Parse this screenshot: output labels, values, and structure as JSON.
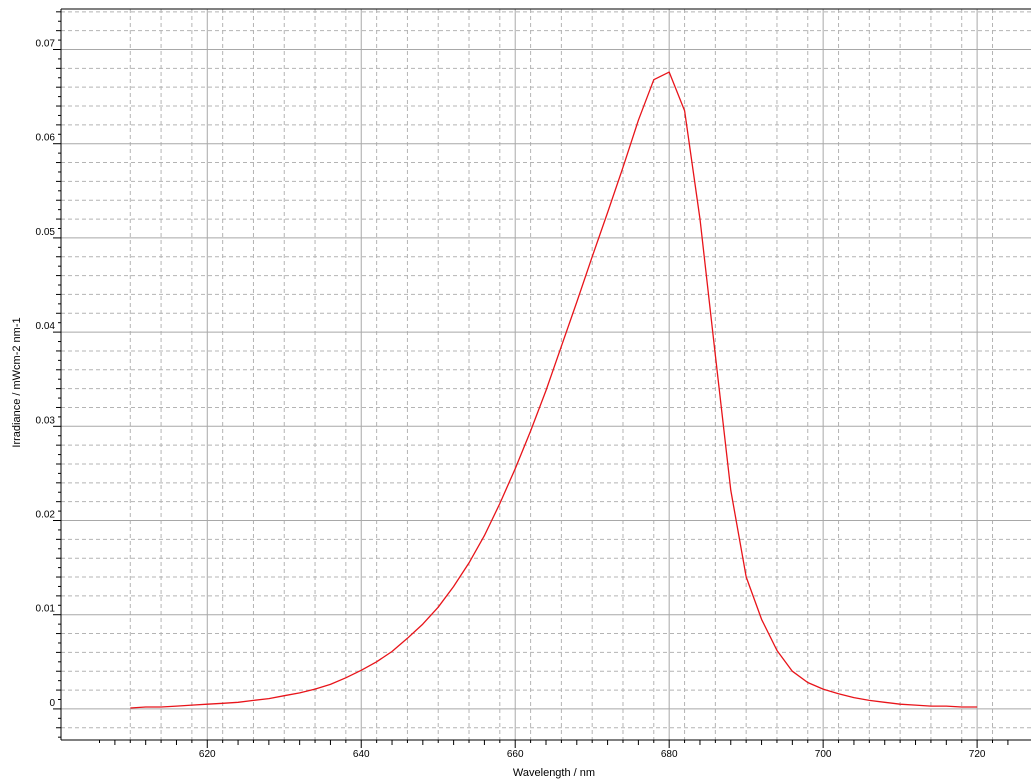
{
  "chart_data": {
    "type": "line",
    "title": "",
    "xlabel": "Wavelength / nm",
    "ylabel": "Irradiance / mWcm-2 nm-1",
    "xlim": [
      601,
      727
    ],
    "ylim": [
      -0.0033,
      0.0743
    ],
    "x_ticks": [
      620,
      640,
      660,
      680,
      700,
      720
    ],
    "x_tick_labels": [
      "620",
      "640",
      "660",
      "680",
      "700",
      "720"
    ],
    "y_ticks": [
      0,
      0.01,
      0.02,
      0.03,
      0.04,
      0.05,
      0.06,
      0.07
    ],
    "y_tick_labels": [
      "0",
      "0.01",
      "0.02",
      "0.03",
      "0.04",
      "0.05",
      "0.06",
      "0.07"
    ],
    "grid": true,
    "legend": "none",
    "series_color": "#e8141a",
    "series": [
      {
        "x": [
          610,
          612,
          614,
          616,
          618,
          620,
          622,
          624,
          626,
          628,
          630,
          632,
          634,
          636,
          638,
          640,
          642,
          644,
          646,
          648,
          650,
          652,
          654,
          656,
          658,
          660,
          662,
          664,
          666,
          668,
          670,
          672,
          674,
          676,
          678,
          680,
          682,
          684,
          686,
          688,
          690,
          692,
          694,
          696,
          698,
          700,
          702,
          704,
          706,
          708,
          710,
          712,
          714,
          716,
          718,
          720
        ],
        "values": [
          0.0001,
          0.0002,
          0.0002,
          0.0003,
          0.0004,
          0.0005,
          0.0006,
          0.0007,
          0.0009,
          0.0011,
          0.0014,
          0.0017,
          0.0021,
          0.0026,
          0.0033,
          0.0041,
          0.005,
          0.0061,
          0.0075,
          0.009,
          0.0108,
          0.013,
          0.0155,
          0.0184,
          0.0218,
          0.0255,
          0.0295,
          0.0338,
          0.0385,
          0.0432,
          0.048,
          0.0527,
          0.0575,
          0.0625,
          0.0668,
          0.0676,
          0.0635,
          0.052,
          0.0375,
          0.0232,
          0.014,
          0.0095,
          0.0062,
          0.004,
          0.0028,
          0.0021,
          0.0016,
          0.0012,
          0.0009,
          0.0007,
          0.0005,
          0.0004,
          0.0003,
          0.0003,
          0.0002,
          0.0002
        ]
      }
    ]
  }
}
